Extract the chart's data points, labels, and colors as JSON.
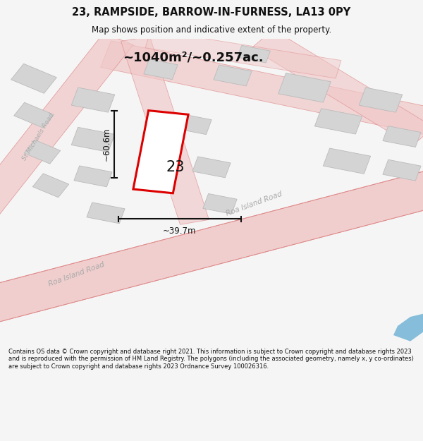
{
  "title": "23, RAMPSIDE, BARROW-IN-FURNESS, LA13 0PY",
  "subtitle": "Map shows position and indicative extent of the property.",
  "area_label": "~1040m²/~0.257ac.",
  "property_number": "23",
  "dim_width": "~39.7m",
  "dim_height": "~60.6m",
  "road_label_1": "Roa Island Road",
  "road_label_2": "Roa Island Road",
  "street_label": "St Michaels Road",
  "footer": "Contains OS data © Crown copyright and database right 2021. This information is subject to Crown copyright and database rights 2023 and is reproduced with the permission of HM Land Registry. The polygons (including the associated geometry, namely x, y co-ordinates) are subject to Crown copyright and database rights 2023 Ordnance Survey 100026316.",
  "bg_color": "#f5f5f5",
  "map_bg": "#ffffff",
  "road_fill": "#f0c8c8",
  "road_edge": "#e08888",
  "road_centerline": "#e09090",
  "building_fill": "#d4d4d4",
  "building_edge": "#bbbbbb",
  "highlight_color": "#dd0000",
  "highlight_fill": "#ffffff",
  "dim_color": "#111111",
  "text_color": "#111111",
  "road_text_color": "#aaaaaa",
  "blue_fill": "#6ab0d4"
}
